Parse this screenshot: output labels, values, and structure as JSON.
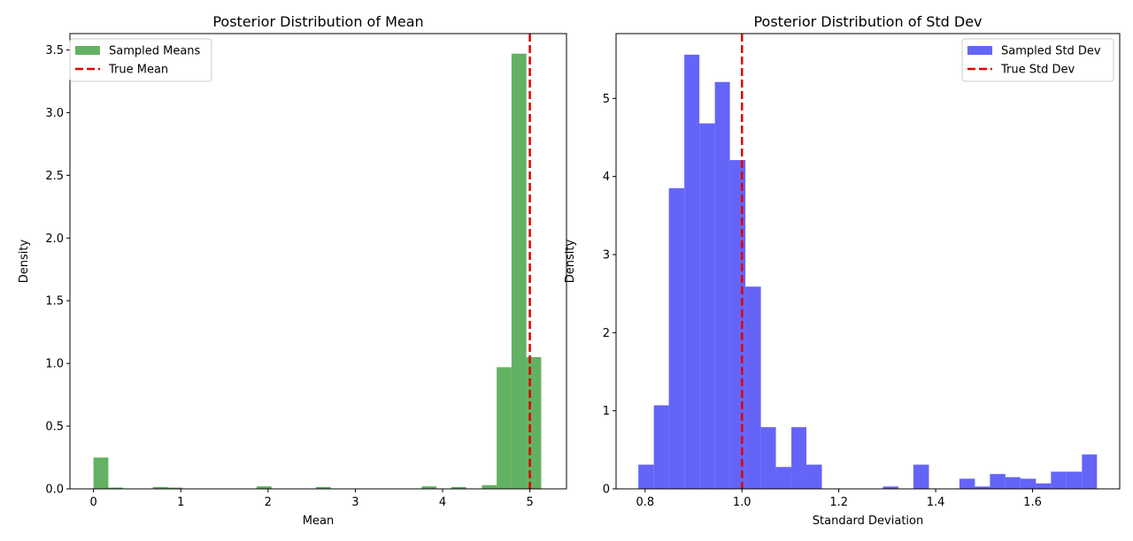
{
  "chart_data": [
    {
      "type": "bar",
      "title": "Posterior Distribution of Mean",
      "xlabel": "Mean",
      "ylabel": "Density",
      "xlim": [
        -0.27,
        5.42
      ],
      "ylim": [
        0,
        3.63
      ],
      "xticks": [
        0,
        1,
        2,
        3,
        4,
        5
      ],
      "yticks": [
        0.0,
        0.5,
        1.0,
        1.5,
        2.0,
        2.5,
        3.0,
        3.5
      ],
      "xtick_labels": [
        "0",
        "1",
        "2",
        "3",
        "4",
        "5"
      ],
      "ytick_labels": [
        "0.0",
        "0.5",
        "1.0",
        "1.5",
        "2.0",
        "2.5",
        "3.0",
        "3.5"
      ],
      "grid": false,
      "legend_position": "top-left",
      "color": "#63b163",
      "bins": [
        {
          "x0": 0.0,
          "x1": 0.17,
          "density": 0.25
        },
        {
          "x0": 0.17,
          "x1": 0.34,
          "density": 0.01
        },
        {
          "x0": 0.68,
          "x1": 0.85,
          "density": 0.015
        },
        {
          "x0": 0.85,
          "x1": 1.02,
          "density": 0.01
        },
        {
          "x0": 1.87,
          "x1": 2.04,
          "density": 0.02
        },
        {
          "x0": 2.55,
          "x1": 2.72,
          "density": 0.015
        },
        {
          "x0": 3.76,
          "x1": 3.93,
          "density": 0.02
        },
        {
          "x0": 4.1,
          "x1": 4.27,
          "density": 0.015
        },
        {
          "x0": 4.45,
          "x1": 4.62,
          "density": 0.03
        },
        {
          "x0": 4.62,
          "x1": 4.79,
          "density": 0.97
        },
        {
          "x0": 4.79,
          "x1": 4.96,
          "density": 3.47
        },
        {
          "x0": 4.96,
          "x1": 5.13,
          "density": 1.05
        }
      ],
      "reference_line": {
        "x": 5.0,
        "label": "True Mean",
        "color": "#e00000"
      },
      "legend": [
        {
          "label": "Sampled Means",
          "kind": "patch",
          "color": "#63b163"
        },
        {
          "label": "True Mean",
          "kind": "dashed-line",
          "color": "#e00000"
        }
      ]
    },
    {
      "type": "bar",
      "title": "Posterior Distribution of Std Dev",
      "xlabel": "Standard Deviation",
      "ylabel": "Density",
      "xlim": [
        0.74,
        1.78
      ],
      "ylim": [
        0,
        5.83
      ],
      "xticks": [
        0.8,
        1.0,
        1.2,
        1.4,
        1.6
      ],
      "yticks": [
        0,
        1,
        2,
        3,
        4,
        5
      ],
      "xtick_labels": [
        "0.8",
        "1.0",
        "1.2",
        "1.4",
        "1.6"
      ],
      "ytick_labels": [
        "0",
        "1",
        "2",
        "3",
        "4",
        "5"
      ],
      "grid": false,
      "legend_position": "top-right",
      "color": "#6464f8",
      "bins": [
        {
          "x0": 0.786,
          "x1": 0.818,
          "density": 0.31
        },
        {
          "x0": 0.818,
          "x1": 0.849,
          "density": 1.07
        },
        {
          "x0": 0.849,
          "x1": 0.881,
          "density": 3.85
        },
        {
          "x0": 0.881,
          "x1": 0.912,
          "density": 5.56
        },
        {
          "x0": 0.912,
          "x1": 0.944,
          "density": 4.68
        },
        {
          "x0": 0.944,
          "x1": 0.975,
          "density": 5.21
        },
        {
          "x0": 0.975,
          "x1": 1.007,
          "density": 4.21
        },
        {
          "x0": 1.007,
          "x1": 1.039,
          "density": 2.59
        },
        {
          "x0": 1.039,
          "x1": 1.07,
          "density": 0.79
        },
        {
          "x0": 1.07,
          "x1": 1.102,
          "density": 0.28
        },
        {
          "x0": 1.102,
          "x1": 1.133,
          "density": 0.79
        },
        {
          "x0": 1.133,
          "x1": 1.165,
          "density": 0.31
        },
        {
          "x0": 1.291,
          "x1": 1.323,
          "density": 0.03
        },
        {
          "x0": 1.354,
          "x1": 1.386,
          "density": 0.31
        },
        {
          "x0": 1.449,
          "x1": 1.481,
          "density": 0.13
        },
        {
          "x0": 1.481,
          "x1": 1.512,
          "density": 0.03
        },
        {
          "x0": 1.512,
          "x1": 1.544,
          "density": 0.19
        },
        {
          "x0": 1.544,
          "x1": 1.575,
          "density": 0.15
        },
        {
          "x0": 1.575,
          "x1": 1.607,
          "density": 0.13
        },
        {
          "x0": 1.607,
          "x1": 1.638,
          "density": 0.07
        },
        {
          "x0": 1.638,
          "x1": 1.67,
          "density": 0.22
        },
        {
          "x0": 1.67,
          "x1": 1.702,
          "density": 0.22
        },
        {
          "x0": 1.702,
          "x1": 1.733,
          "density": 0.44
        }
      ],
      "reference_line": {
        "x": 1.0,
        "label": "True Std Dev",
        "color": "#e00000"
      },
      "legend": [
        {
          "label": "Sampled Std Dev",
          "kind": "patch",
          "color": "#6464f8"
        },
        {
          "label": "True Std Dev",
          "kind": "dashed-line",
          "color": "#e00000"
        }
      ]
    }
  ]
}
